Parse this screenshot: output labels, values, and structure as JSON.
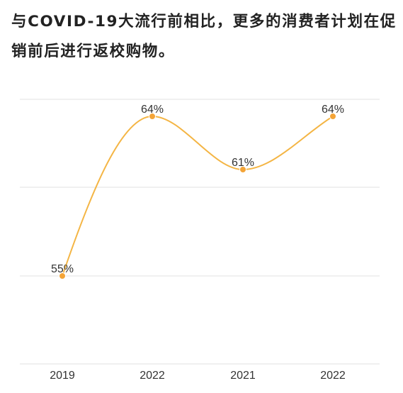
{
  "title": "与COVID-19大流行前相比，更多的消费者计划在促销前后进行返校购物。",
  "chart_data": {
    "type": "line",
    "title": "与COVID-19大流行前相比，更多的消费者计划在促销前后进行返校购物。",
    "categories": [
      "2019",
      "2022",
      "2021",
      "2022"
    ],
    "series": [
      {
        "values": [
          55,
          64,
          61,
          64
        ],
        "labels": [
          "55%",
          "64%",
          "61%",
          "64%"
        ]
      }
    ],
    "ylim": [
      50,
      65
    ],
    "y_unit": "%",
    "grid": true,
    "smooth": true,
    "line_color": "#f4b544",
    "marker_color": "#f4a437",
    "xlabel": "",
    "ylabel": ""
  }
}
